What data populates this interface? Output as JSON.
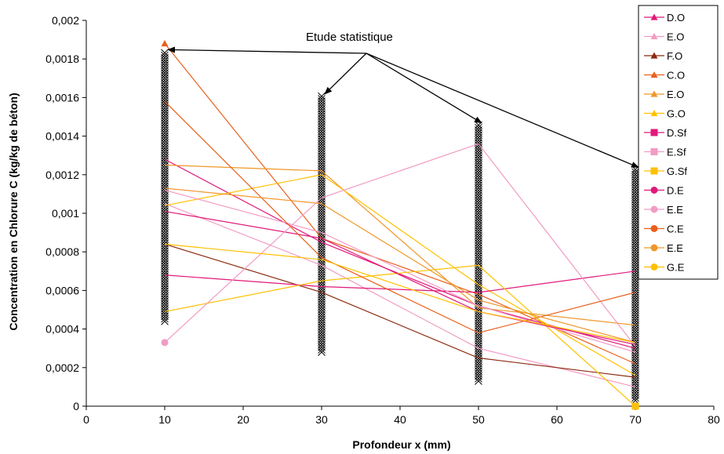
{
  "chart_data": {
    "type": "line",
    "title": "",
    "xlabel": "Profondeur x (mm)",
    "ylabel": "Concentration en Chlorure C (kg/kg de béton)",
    "xlim": [
      0,
      80
    ],
    "ylim": [
      0,
      0.002
    ],
    "x_ticks": [
      0,
      10,
      20,
      30,
      40,
      50,
      60,
      70,
      80
    ],
    "x_tick_labels": [
      "0",
      "10",
      "20",
      "30",
      "40",
      "50",
      "60",
      "70",
      "80"
    ],
    "y_ticks": [
      0,
      0.0002,
      0.0004,
      0.0006,
      0.0008,
      0.001,
      0.0012,
      0.0014,
      0.0016,
      0.0018,
      0.002
    ],
    "y_tick_labels": [
      "0",
      "0,0002",
      "0,0004",
      "0,0006",
      "0,0008",
      "0,001",
      "0,0012",
      "0,0014",
      "0,0016",
      "0,0018",
      "0,002"
    ],
    "grid": false,
    "legend_position": "right",
    "annotation": "Etude statistique",
    "series": [
      {
        "name": "D.O",
        "color": "#e0197a",
        "marker": "triangle",
        "x": [
          10,
          30,
          50,
          70
        ],
        "y": [
          0.00128,
          0.00085,
          0.00052,
          0.0003
        ]
      },
      {
        "name": "E.O",
        "color": "#f29bc4",
        "marker": "triangle",
        "x": [
          10,
          30,
          50,
          70
        ],
        "y": [
          0.00105,
          0.00073,
          0.0003,
          0.0001
        ]
      },
      {
        "name": "F.O",
        "color": "#8b2a0f",
        "marker": "triangle",
        "x": [
          10,
          30,
          50,
          70
        ],
        "y": [
          0.00084,
          0.00059,
          0.00025,
          0.00015
        ]
      },
      {
        "name": "C.O",
        "color": "#e8601c",
        "marker": "triangle",
        "x": [
          10,
          30,
          50,
          70
        ],
        "y": [
          0.00188,
          0.00087,
          0.00058,
          0.00022
        ]
      },
      {
        "name": "E.O",
        "color": "#f0962a",
        "marker": "triangle",
        "x": [
          10,
          30,
          50,
          70
        ],
        "y": [
          0.00125,
          0.00122,
          0.00051,
          0.00042
        ]
      },
      {
        "name": "G.O",
        "color": "#ffc000",
        "marker": "triangle",
        "x": [
          10,
          30,
          50,
          70
        ],
        "y": [
          0.00104,
          0.0012,
          0.00063,
          0.00016
        ]
      },
      {
        "name": "D.Sf",
        "color": "#e0197a",
        "marker": "square",
        "x": [
          10,
          30,
          50,
          70
        ],
        "y": [
          0.00068,
          0.00062,
          0.00059,
          0.0007
        ]
      },
      {
        "name": "E.Sf",
        "color": "#f29bc4",
        "marker": "square",
        "x": [
          10,
          30,
          50,
          70
        ],
        "y": [
          0.00112,
          0.0009,
          0.00052,
          0.00028
        ]
      },
      {
        "name": "G.Sf",
        "color": "#ffc000",
        "marker": "square",
        "x": [
          10,
          30,
          50,
          70
        ],
        "y": [
          0.00049,
          0.00065,
          0.00073,
          0.0
        ]
      },
      {
        "name": "D.E",
        "color": "#e0197a",
        "marker": "circle",
        "x": [
          10,
          30,
          50,
          70
        ],
        "y": [
          0.00101,
          0.00087,
          0.00049,
          0.00032
        ]
      },
      {
        "name": "E.E",
        "color": "#f29bc4",
        "marker": "circle",
        "x": [
          10,
          30,
          50,
          70
        ],
        "y": [
          0.00033,
          0.00108,
          0.00136,
          0.00031
        ]
      },
      {
        "name": "C.E",
        "color": "#e8601c",
        "marker": "circle",
        "x": [
          10,
          30,
          50,
          70
        ],
        "y": [
          0.00158,
          0.00077,
          0.00038,
          0.00059
        ]
      },
      {
        "name": "E.E",
        "color": "#f0962a",
        "marker": "circle",
        "x": [
          10,
          30,
          50,
          70
        ],
        "y": [
          0.00113,
          0.00105,
          0.00055,
          0.00033
        ]
      },
      {
        "name": "G.E",
        "color": "#ffc000",
        "marker": "circle",
        "x": [
          10,
          30,
          50,
          70
        ],
        "y": [
          0.00084,
          0.00076,
          0.00049,
          0.00033
        ]
      }
    ],
    "statistical_samples": {
      "marker": "x",
      "color": "#000000",
      "ranges": [
        {
          "x": 10,
          "y_min": 0.00044,
          "y_max": 0.00184,
          "top": 0.00184
        },
        {
          "x": 30,
          "y_min": 0.00028,
          "y_max": 0.00161,
          "top": 0.00161
        },
        {
          "x": 50,
          "y_min": 0.00013,
          "y_max": 0.00146,
          "top": 0.00146
        },
        {
          "x": 70,
          "y_min": 3e-05,
          "y_max": 0.00123,
          "top": 0.00123
        }
      ]
    }
  }
}
